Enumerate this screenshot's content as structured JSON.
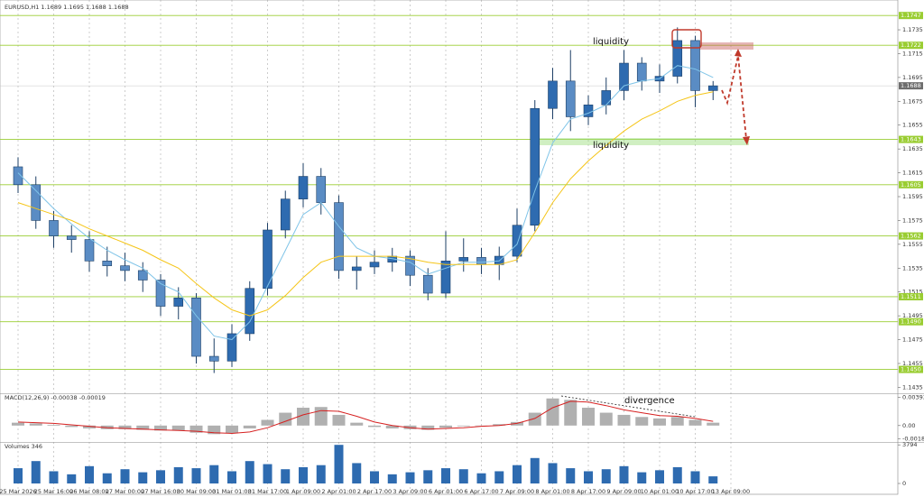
{
  "chart_data": {
    "type": "candlestick",
    "title": "EURUSD,H1  1.1689 1.1695 1.1688 1.1688",
    "categories": [
      "25 Mar 2026",
      null,
      "25 Mar 16:00",
      null,
      "26 Mar 08:00",
      null,
      "27 Mar 00:00",
      null,
      "27 Mar 16:00",
      null,
      "30 Mar 09:00",
      null,
      "31 Mar 01:00",
      null,
      "31 Mar 17:00",
      null,
      "1 Apr 09:00",
      null,
      "2 Apr 01:00",
      null,
      "2 Apr 17:00",
      null,
      "3 Apr 09:00",
      null,
      "6 Apr 01:00",
      null,
      "6 Apr 17:00",
      null,
      "7 Apr 09:00",
      null,
      "8 Apr 01:00",
      null,
      "8 Apr 17:00",
      null,
      "9 Apr 09:00",
      null,
      "10 Apr 01:00",
      null,
      "10 Apr 17:00",
      null,
      "13 Apr 09:00"
    ],
    "candle_color": "#2e6bb0",
    "open": [
      1.162,
      1.1605,
      1.1575,
      1.1562,
      1.1559,
      1.1541,
      1.1537,
      1.1533,
      1.1525,
      1.1503,
      1.151,
      1.1461,
      1.1457,
      1.148,
      1.1518,
      1.1567,
      1.1593,
      1.1612,
      1.159,
      1.1533,
      1.1536,
      1.154,
      1.1545,
      1.1529,
      1.1514,
      1.1541,
      1.1544,
      1.1538,
      1.1545,
      1.1571,
      1.1669,
      1.1692,
      1.1662,
      1.1672,
      1.1684,
      1.1707,
      1.1692,
      1.1696,
      1.1726,
      1.1684,
      null
    ],
    "high": [
      1.1628,
      1.1612,
      1.1583,
      1.1571,
      1.1566,
      1.1553,
      1.1548,
      1.154,
      1.153,
      1.1519,
      1.1514,
      1.1476,
      1.1488,
      1.1524,
      1.1573,
      1.16,
      1.1623,
      1.1619,
      1.1596,
      1.1545,
      1.155,
      1.1552,
      1.155,
      1.1535,
      1.1566,
      1.156,
      1.1552,
      1.1553,
      1.1585,
      1.1676,
      1.1703,
      1.1718,
      1.168,
      1.1695,
      1.1718,
      1.1712,
      1.1706,
      1.1737,
      1.173,
      1.1692,
      null
    ],
    "low": [
      1.1598,
      1.1568,
      1.1552,
      1.1548,
      1.1532,
      1.1528,
      1.1524,
      1.1515,
      1.1495,
      1.1492,
      1.1455,
      1.1447,
      1.1452,
      1.1474,
      1.1512,
      1.156,
      1.1586,
      1.158,
      1.1526,
      1.1517,
      1.153,
      1.1532,
      1.152,
      1.1508,
      1.151,
      1.1532,
      1.153,
      1.1525,
      1.154,
      1.1566,
      1.166,
      1.165,
      1.1655,
      1.1664,
      1.1676,
      1.1684,
      1.1682,
      1.169,
      1.167,
      1.1676,
      null
    ],
    "close": [
      1.1605,
      1.1575,
      1.1562,
      1.1559,
      1.1541,
      1.1537,
      1.1533,
      1.1525,
      1.1503,
      1.151,
      1.1461,
      1.1457,
      1.148,
      1.1518,
      1.1567,
      1.1593,
      1.1612,
      1.159,
      1.1533,
      1.1536,
      1.154,
      1.1545,
      1.1529,
      1.1514,
      1.1541,
      1.1544,
      1.1538,
      1.1545,
      1.1571,
      1.1669,
      1.1692,
      1.1662,
      1.1672,
      1.1684,
      1.1707,
      1.1692,
      1.1696,
      1.1726,
      1.1684,
      1.1688,
      null
    ],
    "overlays": [
      {
        "color": "#7fc4e8",
        "values": [
          1.1615,
          1.16,
          1.1585,
          1.1572,
          1.156,
          1.155,
          1.1542,
          1.1535,
          1.1522,
          1.1515,
          1.1495,
          1.1478,
          1.1475,
          1.149,
          1.152,
          1.155,
          1.158,
          1.159,
          1.157,
          1.1552,
          1.1545,
          1.1543,
          1.154,
          1.153,
          1.1535,
          1.154,
          1.154,
          1.1541,
          1.1555,
          1.16,
          1.164,
          1.166,
          1.1665,
          1.1672,
          1.1688,
          1.1692,
          1.1694,
          1.1705,
          1.1702,
          1.1695,
          null
        ]
      },
      {
        "color": "#f5c518",
        "values": [
          1.159,
          1.1585,
          1.158,
          1.1575,
          1.1568,
          1.1562,
          1.1556,
          1.155,
          1.1542,
          1.1535,
          1.1522,
          1.151,
          1.15,
          1.1495,
          1.15,
          1.1512,
          1.1527,
          1.154,
          1.1545,
          1.1545,
          1.1545,
          1.1545,
          1.1543,
          1.154,
          1.1538,
          1.1538,
          1.1538,
          1.1538,
          1.1542,
          1.1565,
          1.159,
          1.161,
          1.1625,
          1.1638,
          1.165,
          1.166,
          1.1667,
          1.1675,
          1.168,
          1.1683,
          null
        ]
      }
    ],
    "ylim": [
      1.143,
      1.176
    ],
    "yticks": [
      1.1735,
      1.1715,
      1.1695,
      1.1675,
      1.1655,
      1.1635,
      1.1615,
      1.1595,
      1.1575,
      1.1555,
      1.1535,
      1.1515,
      1.1495,
      1.1475,
      1.1455,
      1.1435
    ],
    "levels": [
      1.1747,
      1.1722,
      1.1643,
      1.1605,
      1.1562,
      1.1511,
      {
        "value": 1.149,
        "label": "1.1490"
      },
      {
        "value": 1.145,
        "label": "1.1450"
      }
    ],
    "level_color": "#9acd32",
    "current_price": 1.1688,
    "annotations": [
      "liquidity",
      "liquidity",
      "divergence"
    ],
    "macd": {
      "title": "MACD(12,26,9) -0.00038 -0.00019",
      "histogram": [
        0.0004,
        0.0003,
        0.0001,
        -0.0002,
        -0.0004,
        -0.0005,
        -0.0005,
        -0.0006,
        -0.0007,
        -0.0007,
        -0.001,
        -0.0012,
        -0.0011,
        -0.0004,
        0.0008,
        0.0018,
        0.0025,
        0.0026,
        0.0015,
        0.0004,
        -0.0002,
        -0.0004,
        -0.0005,
        -0.0006,
        -0.0003,
        -0.0001,
        0.0,
        0.0002,
        0.0005,
        0.0018,
        0.0038,
        0.0036,
        0.0025,
        0.0018,
        0.0015,
        0.0012,
        0.001,
        0.0012,
        0.0008,
        0.0004,
        null
      ],
      "histogram_color": "#b0b0b0",
      "signal": [
        0.0005,
        0.0004,
        0.0003,
        0.0001,
        -0.0001,
        -0.0003,
        -0.0004,
        -0.0005,
        -0.0006,
        -0.0007,
        -0.0008,
        -0.001,
        -0.0011,
        -0.0009,
        -0.0003,
        0.0006,
        0.0015,
        0.0021,
        0.002,
        0.0013,
        0.0005,
        0.0,
        -0.0003,
        -0.0005,
        -0.0004,
        -0.0003,
        -0.0001,
        0.0,
        0.0003,
        0.001,
        0.0025,
        0.0034,
        0.0033,
        0.0028,
        0.0022,
        0.0018,
        0.0014,
        0.0013,
        0.001,
        0.0006,
        null
      ],
      "signal_color": "#d62020",
      "ylim": [
        -0.0023,
        0.0044
      ],
      "yticks": [
        0.00393,
        {
          "value": 0,
          "label": "0.00"
        },
        -0.00183
      ]
    },
    "volume": {
      "title": "Volumes 346",
      "values": [
        1500,
        2200,
        1200,
        900,
        1700,
        1000,
        1400,
        1100,
        1300,
        1600,
        1500,
        1800,
        1200,
        2200,
        1900,
        1400,
        1600,
        1800,
        3794,
        2000,
        1200,
        900,
        1100,
        1300,
        1500,
        1400,
        1000,
        1200,
        1800,
        2500,
        2000,
        1500,
        1200,
        1400,
        1700,
        1100,
        1300,
        1600,
        1200,
        700,
        null
      ],
      "color": "#2e6bb0",
      "ylim": [
        0,
        3900
      ],
      "yticks": [
        0,
        3794
      ]
    }
  }
}
